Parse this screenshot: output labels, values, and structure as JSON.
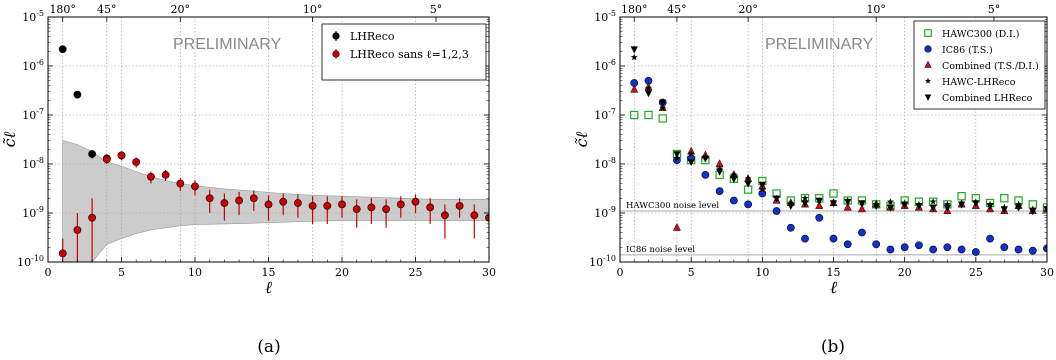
{
  "chart_data": [
    {
      "type": "scatter",
      "panel_label": "(a)",
      "watermark": "PRELIMINARY",
      "xlabel": "ℓ",
      "ylabel": "c̃ℓ",
      "xlim": [
        0,
        30
      ],
      "ylim_exponent": [
        -10,
        -5
      ],
      "log_y": true,
      "grid": true,
      "legend_placement": "top-right",
      "x_ticks": [
        "0",
        "5",
        "10",
        "15",
        "20",
        "25",
        "30"
      ],
      "y_tick_labels": [
        "10-10",
        "10-9",
        "10-8",
        "10-7",
        "10-6",
        "10-5"
      ],
      "top_axis_ticks": [
        {
          "label": "180°",
          "l": 1
        },
        {
          "label": "45°",
          "l": 4
        },
        {
          "label": "20°",
          "l": 9
        },
        {
          "label": "10°",
          "l": 18
        },
        {
          "label": "5°",
          "l": 36
        }
      ],
      "band_color": "#cccccc",
      "band": {
        "l": [
          1,
          2,
          3,
          4,
          5,
          6,
          7,
          8,
          9,
          10,
          12,
          14,
          16,
          18,
          20,
          22,
          24,
          26,
          28,
          30
        ],
        "low": [
          1e-10,
          1e-10,
          1e-10,
          2.3e-10,
          3e-10,
          3.8e-10,
          4.5e-10,
          5e-10,
          5.5e-10,
          5.8e-10,
          6e-10,
          6.2e-10,
          6.5e-10,
          6.8e-10,
          7e-10,
          7e-10,
          7e-10,
          7e-10,
          7e-10,
          7e-10
        ],
        "high": [
          3e-08,
          2.5e-08,
          1.8e-08,
          1.1e-08,
          9e-09,
          7e-09,
          5.5e-09,
          4.6e-09,
          4e-09,
          3.6e-09,
          3.1e-09,
          2.8e-09,
          2.5e-09,
          2.3e-09,
          2.2e-09,
          2.1e-09,
          2e-09,
          1.9e-09,
          1.9e-09,
          1.9e-09
        ]
      },
      "series": [
        {
          "name": "LHReco",
          "marker": "circle",
          "color": "#000000",
          "x": [
            1,
            2,
            3,
            4,
            5
          ],
          "y": [
            2.2e-06,
            2.6e-07,
            1.6e-08,
            1.3e-08,
            1.5e-08
          ],
          "err": [
            [
              0,
              0
            ],
            [
              0,
              0
            ],
            [
              3e-09,
              3e-09
            ],
            [
              2.5e-09,
              2.5e-09
            ],
            [
              3e-09,
              3e-09
            ]
          ]
        },
        {
          "name": "LHReco sans ℓ=1,2,3",
          "marker": "circle",
          "color": "#cc0000",
          "error_color": "#cc0000",
          "x": [
            1,
            2,
            3,
            4,
            5,
            6,
            7,
            8,
            9,
            10,
            11,
            12,
            13,
            14,
            15,
            16,
            17,
            18,
            19,
            20,
            21,
            22,
            23,
            24,
            25,
            26,
            27,
            28,
            29,
            30
          ],
          "y": [
            1.5e-10,
            4.5e-10,
            8e-10,
            1.25e-08,
            1.5e-08,
            1.1e-08,
            5.5e-09,
            6e-09,
            4e-09,
            3.5e-09,
            2e-09,
            1.6e-09,
            1.8e-09,
            2e-09,
            1.5e-09,
            1.7e-09,
            1.6e-09,
            1.4e-09,
            1.4e-09,
            1.5e-09,
            1.2e-09,
            1.3e-09,
            1.2e-09,
            1.5e-09,
            1.7e-09,
            1.3e-09,
            9e-10,
            1.4e-09,
            9e-10,
            8e-10
          ],
          "err": [
            [
              5e-11,
              1.5e-10
            ],
            [
              3.5e-10,
              5.5e-10
            ],
            [
              7e-10,
              1.2e-09
            ],
            [
              2.5e-09,
              2.5e-09
            ],
            [
              3e-09,
              3e-09
            ],
            [
              2.5e-09,
              2.5e-09
            ],
            [
              1.5e-09,
              1.5e-09
            ],
            [
              1.5e-09,
              1.5e-09
            ],
            [
              1.2e-09,
              1.2e-09
            ],
            [
              1.2e-09,
              1.2e-09
            ],
            [
              1e-09,
              1e-09
            ],
            [
              9e-10,
              9e-10
            ],
            [
              9e-10,
              9e-10
            ],
            [
              9e-10,
              9e-10
            ],
            [
              8e-10,
              8e-10
            ],
            [
              8e-10,
              8e-10
            ],
            [
              8e-10,
              8e-10
            ],
            [
              8e-10,
              8e-10
            ],
            [
              8e-10,
              8e-10
            ],
            [
              7e-10,
              7e-10
            ],
            [
              7e-10,
              7e-10
            ],
            [
              7e-10,
              7e-10
            ],
            [
              7e-10,
              7e-10
            ],
            [
              7e-10,
              7e-10
            ],
            [
              7e-10,
              7e-10
            ],
            [
              7e-10,
              7e-10
            ],
            [
              6e-10,
              6e-10
            ],
            [
              6e-10,
              6e-10
            ],
            [
              6e-10,
              6e-10
            ],
            [
              5e-10,
              5e-10
            ]
          ]
        }
      ]
    },
    {
      "type": "scatter",
      "panel_label": "(b)",
      "watermark": "PRELIMINARY",
      "xlabel": "ℓ",
      "ylabel": "c̃ℓ",
      "xlim": [
        0,
        30
      ],
      "ylim_exponent": [
        -10,
        -5
      ],
      "log_y": true,
      "grid": true,
      "legend_placement": "top-right",
      "x_ticks": [
        "0",
        "5",
        "10",
        "15",
        "20",
        "25",
        "30"
      ],
      "y_tick_labels": [
        "10-10",
        "10-9",
        "10-8",
        "10-7",
        "10-6",
        "10-5"
      ],
      "top_axis_ticks": [
        {
          "label": "180°",
          "l": 1
        },
        {
          "label": "45°",
          "l": 4
        },
        {
          "label": "20°",
          "l": 9
        },
        {
          "label": "10°",
          "l": 18
        },
        {
          "label": "5°",
          "l": 36
        }
      ],
      "noise_levels": [
        {
          "label": "HAWC300 noise level",
          "value": 1.1e-09
        },
        {
          "label": "IC86 noise level",
          "value": 1.4e-10
        }
      ],
      "series": [
        {
          "name": "HAWC300 (D.I.)",
          "marker": "square-open",
          "color": "#22aa22",
          "x": [
            1,
            2,
            3,
            4,
            5,
            6,
            7,
            8,
            9,
            10,
            11,
            12,
            13,
            14,
            15,
            16,
            17,
            18,
            19,
            20,
            21,
            22,
            23,
            24,
            25,
            26,
            27,
            28,
            29,
            30
          ],
          "y": [
            1e-07,
            1e-07,
            8.5e-08,
            1.6e-08,
            1.2e-08,
            1.2e-08,
            6e-09,
            5e-09,
            3e-09,
            4.5e-09,
            2.5e-09,
            1.8e-09,
            2e-09,
            2e-09,
            2.5e-09,
            1.8e-09,
            1.8e-09,
            1.5e-09,
            1.4e-09,
            1.8e-09,
            1.7e-09,
            1.7e-09,
            1.5e-09,
            2.2e-09,
            2e-09,
            1.6e-09,
            2e-09,
            1.8e-09,
            1.5e-09,
            1.3e-09
          ]
        },
        {
          "name": "IC86 (T.S.)",
          "marker": "circle",
          "color": "#1030d0",
          "x": [
            1,
            2,
            3,
            4,
            5,
            6,
            7,
            8,
            9,
            10,
            11,
            12,
            13,
            14,
            15,
            16,
            17,
            18,
            19,
            20,
            21,
            22,
            23,
            24,
            25,
            26,
            27,
            28,
            29,
            30
          ],
          "y": [
            4.5e-07,
            5e-07,
            1.8e-07,
            1.2e-08,
            1.3e-08,
            6e-09,
            2.8e-09,
            1.8e-09,
            1.5e-09,
            2.5e-09,
            1.1e-09,
            5e-10,
            3e-10,
            8e-10,
            3e-10,
            2.3e-10,
            4e-10,
            2.3e-10,
            1.8e-10,
            2e-10,
            2.2e-10,
            1.8e-10,
            2e-10,
            1.8e-10,
            1.6e-10,
            3e-10,
            2e-10,
            1.8e-10,
            1.7e-10,
            1.9e-10
          ]
        },
        {
          "name": "Combined (T.S./D.I.)",
          "marker": "triangle-up",
          "color": "#cc1111",
          "x": [
            1,
            2,
            3,
            4,
            5,
            6,
            7,
            8,
            9,
            10,
            11,
            12,
            13,
            14,
            15,
            16,
            17,
            18,
            19,
            20,
            21,
            22,
            23,
            24,
            25,
            26,
            27,
            28,
            29,
            30
          ],
          "y": [
            3.3e-07,
            3.7e-07,
            1.4e-07,
            5e-10,
            1.8e-08,
            1.5e-08,
            1e-08,
            6e-09,
            5e-09,
            3.5e-09,
            1.8e-09,
            1.6e-09,
            1.5e-09,
            1.4e-09,
            1.6e-09,
            1.3e-09,
            1.2e-09,
            1.5e-09,
            1.3e-09,
            1.4e-09,
            1.3e-09,
            1.2e-09,
            1.1e-09,
            1.5e-09,
            1.4e-09,
            1.2e-09,
            1.1e-09,
            1.4e-09,
            1.1e-09,
            1.2e-09
          ]
        },
        {
          "name": "HAWC-LHReco",
          "marker": "star",
          "color": "#000000",
          "x": [
            1,
            2,
            3,
            4,
            5,
            6,
            7,
            8,
            9,
            10,
            11,
            12,
            13,
            14,
            15,
            16,
            17,
            18,
            19,
            20,
            21,
            22,
            23,
            24,
            25,
            26,
            27,
            28,
            29,
            30
          ],
          "y": [
            1.5e-06,
            3.5e-07,
            1.4e-07,
            1.3e-08,
            1.6e-08,
            1.4e-08,
            8e-09,
            6e-09,
            5e-09,
            3e-09,
            2e-09,
            1.6e-09,
            2e-09,
            1.8e-09,
            1.6e-09,
            1.8e-09,
            1.6e-09,
            1.5e-09,
            1.7e-09,
            1.6e-09,
            1.5e-09,
            1.7e-09,
            1.5e-09,
            1.6e-09,
            1.7e-09,
            1.5e-09,
            1.3e-09,
            1.5e-09,
            1.2e-09,
            1.3e-09
          ]
        },
        {
          "name": "Combined LHReco",
          "marker": "triangle-down",
          "color": "#000000",
          "x": [
            1,
            2,
            3,
            4,
            5,
            6,
            7,
            8,
            9,
            10,
            11,
            12,
            13,
            14,
            15,
            16,
            17,
            18,
            19,
            20,
            21,
            22,
            23,
            24,
            25,
            26,
            27,
            28,
            29,
            30
          ],
          "y": [
            2.2e-06,
            2.8e-07,
            1.8e-07,
            1.6e-08,
            1.1e-08,
            1.3e-08,
            7e-09,
            5e-09,
            4e-09,
            3.8e-09,
            2e-09,
            1.4e-09,
            1.6e-09,
            1.8e-09,
            1.6e-09,
            1.7e-09,
            1.6e-09,
            1.4e-09,
            1.3e-09,
            1.5e-09,
            1.4e-09,
            1.3e-09,
            1.3e-09,
            1.5e-09,
            1.6e-09,
            1.4e-09,
            1.2e-09,
            1.3e-09,
            1.1e-09,
            1.2e-09
          ]
        }
      ]
    }
  ]
}
